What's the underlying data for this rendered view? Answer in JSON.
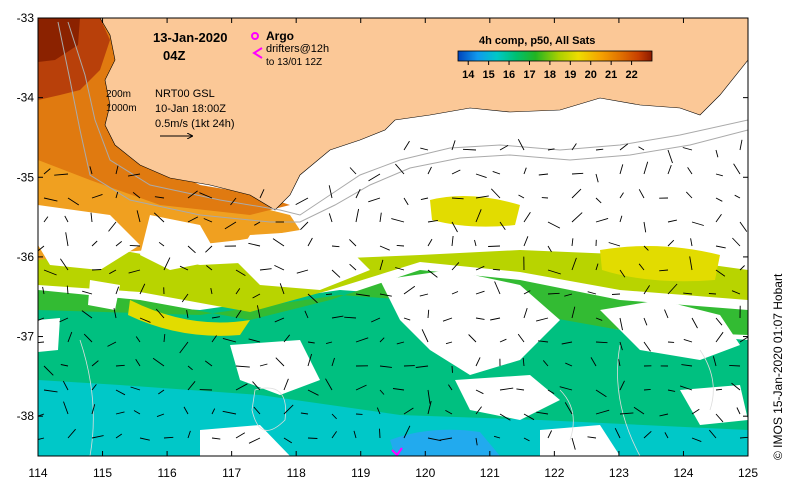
{
  "map": {
    "date": "13-Jan-2020",
    "hour": "04Z",
    "legend": {
      "argo_label": "Argo",
      "drifters_label": "drifters@12h",
      "drifters_sub": "to 13/01 12Z",
      "argo_color": "#ff00ff",
      "drifter_color": "#ff00ff"
    },
    "contours": {
      "c200": "200m",
      "c1000": "1000m"
    },
    "currents": {
      "product": "NRT00 GSL",
      "datetime": "10-Jan 18:00Z",
      "scale": "0.5m/s (1kt 24h)"
    },
    "credit": "© IMOS 15-Jan-2020 01:07 Hobart",
    "colors": {
      "land": "#fbc897",
      "no_data": "#ffffff",
      "isobath": "#aaaaaa"
    }
  },
  "colorbar": {
    "title": "4h comp, p50, All Sats",
    "ticks": [
      "14",
      "15",
      "16",
      "17",
      "18",
      "19",
      "20",
      "21",
      "22"
    ],
    "min": 13.5,
    "max": 23,
    "stops": [
      "#0044bb",
      "#1199ee",
      "#00c8c8",
      "#00c070",
      "#22b422",
      "#aad000",
      "#eedd00",
      "#f5a000",
      "#e07000",
      "#c84000",
      "#8b1a00"
    ]
  },
  "axes": {
    "xlabels": [
      "114",
      "115",
      "116",
      "117",
      "118",
      "119",
      "120",
      "121",
      "122",
      "123",
      "124",
      "125"
    ],
    "ylabels": [
      "-33",
      "-34",
      "-35",
      "-36",
      "-37",
      "-38"
    ],
    "xlim": [
      114,
      125
    ],
    "ylim": [
      -38.5,
      -33
    ]
  }
}
